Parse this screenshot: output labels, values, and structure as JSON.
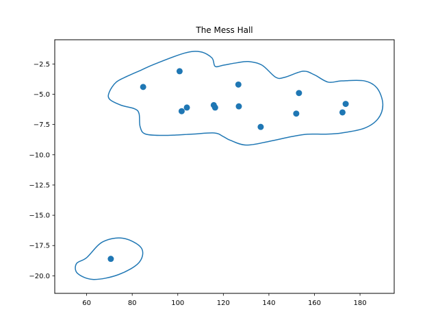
{
  "chart_data": {
    "type": "scatter",
    "title": "The Mess Hall",
    "xlabel": "",
    "ylabel": "",
    "xlim": [
      46,
      195
    ],
    "ylim": [
      -21.45,
      -0.5
    ],
    "x_ticks": [
      60,
      80,
      100,
      120,
      140,
      160,
      180
    ],
    "y_ticks": [
      -2.5,
      -5.0,
      -7.5,
      -10.0,
      -12.5,
      -15.0,
      -17.5,
      -20.0
    ],
    "x_tick_labels": [
      "60",
      "80",
      "100",
      "120",
      "140",
      "160",
      "180"
    ],
    "y_tick_labels": [
      "−2.5",
      "−5.0",
      "−7.5",
      "−10.0",
      "−12.5",
      "−15.0",
      "−17.5",
      "−20.0"
    ],
    "grid": false,
    "colors": {
      "points": "#1f77b4",
      "outline": "#1f77b4"
    },
    "points": [
      {
        "x": 84.8,
        "y": -4.4
      },
      {
        "x": 100.8,
        "y": -3.1
      },
      {
        "x": 101.7,
        "y": -6.4
      },
      {
        "x": 104.0,
        "y": -6.1
      },
      {
        "x": 115.8,
        "y": -5.9
      },
      {
        "x": 116.4,
        "y": -6.1
      },
      {
        "x": 126.6,
        "y": -4.2
      },
      {
        "x": 126.8,
        "y": -6.0
      },
      {
        "x": 136.4,
        "y": -7.7
      },
      {
        "x": 152.0,
        "y": -6.6
      },
      {
        "x": 153.2,
        "y": -4.9
      },
      {
        "x": 172.3,
        "y": -6.5
      },
      {
        "x": 173.7,
        "y": -5.8
      },
      {
        "x": 70.6,
        "y": -18.6
      }
    ],
    "boundaries": [
      [
        [
          90.0,
          -2.5
        ],
        [
          103.0,
          -1.6
        ],
        [
          110.0,
          -1.5
        ],
        [
          115.0,
          -2.0
        ],
        [
          116.4,
          -2.7
        ],
        [
          120.0,
          -2.6
        ],
        [
          126.0,
          -2.4
        ],
        [
          131.0,
          -2.3
        ],
        [
          137.0,
          -2.6
        ],
        [
          143.0,
          -3.6
        ],
        [
          147.0,
          -3.6
        ],
        [
          155.0,
          -3.1
        ],
        [
          160.0,
          -3.4
        ],
        [
          166.0,
          -4.0
        ],
        [
          172.0,
          -3.9
        ],
        [
          182.0,
          -3.9
        ],
        [
          187.5,
          -4.5
        ],
        [
          190.0,
          -5.8
        ],
        [
          188.0,
          -7.0
        ],
        [
          182.0,
          -7.8
        ],
        [
          172.0,
          -8.2
        ],
        [
          165.0,
          -8.3
        ],
        [
          157.0,
          -8.3
        ],
        [
          150.0,
          -8.5
        ],
        [
          140.0,
          -8.9
        ],
        [
          130.0,
          -9.2
        ],
        [
          123.0,
          -8.8
        ],
        [
          120.0,
          -8.5
        ],
        [
          116.0,
          -8.2
        ],
        [
          106.0,
          -8.3
        ],
        [
          95.0,
          -8.4
        ],
        [
          86.0,
          -8.3
        ],
        [
          83.5,
          -7.7
        ],
        [
          83.0,
          -6.6
        ],
        [
          81.0,
          -6.2
        ],
        [
          75.0,
          -5.9
        ],
        [
          70.0,
          -5.4
        ],
        [
          70.0,
          -4.8
        ],
        [
          73.0,
          -4.0
        ],
        [
          78.0,
          -3.5
        ],
        [
          84.0,
          -3.0
        ]
      ],
      [
        [
          60.0,
          -18.5
        ],
        [
          67.0,
          -17.2
        ],
        [
          76.0,
          -16.9
        ],
        [
          84.0,
          -17.7
        ],
        [
          83.0,
          -18.9
        ],
        [
          74.0,
          -19.9
        ],
        [
          63.0,
          -20.3
        ],
        [
          56.0,
          -19.8
        ],
        [
          55.5,
          -19.0
        ]
      ]
    ]
  }
}
